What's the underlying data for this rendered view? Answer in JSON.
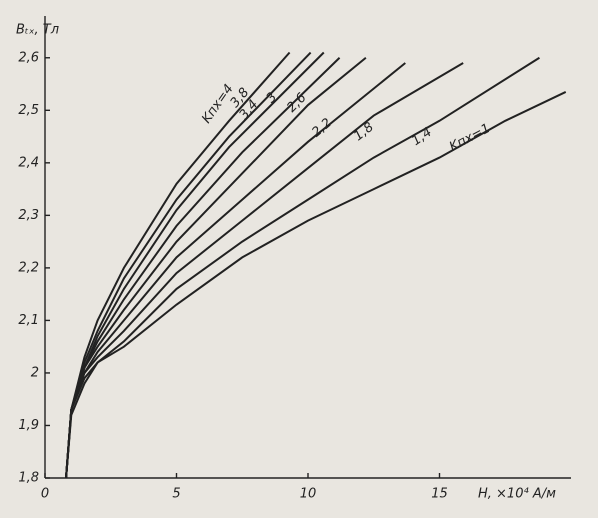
{
  "chart_data": {
    "type": "line",
    "y_label": "Bₜₓ, Тл",
    "x_label": "H, ×10⁴ А/м",
    "xlim": [
      0,
      20
    ],
    "ylim": [
      1.8,
      2.67
    ],
    "xticks": [
      0,
      5,
      10,
      15
    ],
    "yticks": [
      {
        "value": 1.8,
        "label": "1,8"
      },
      {
        "value": 1.9,
        "label": "1,9"
      },
      2,
      {
        "value": 2.1,
        "label": "2,1"
      },
      {
        "value": 2.2,
        "label": "2,2"
      },
      {
        "value": 2.3,
        "label": "2,3"
      },
      {
        "value": 2.4,
        "label": "2,4"
      },
      {
        "value": 2.5,
        "label": "2,5"
      },
      {
        "value": 2.6,
        "label": "2,6"
      }
    ],
    "series": [
      {
        "name": "Kпх=1",
        "color": "#222222",
        "x": [
          0.8,
          1,
          1.5,
          2,
          3,
          5,
          7.5,
          10,
          12.5,
          15,
          17.5,
          19.8
        ],
        "values": [
          1.8,
          1.92,
          1.98,
          2.02,
          2.05,
          2.13,
          2.22,
          2.29,
          2.35,
          2.41,
          2.48,
          2.535
        ]
      },
      {
        "name": "1,4",
        "color": "#222222",
        "x": [
          0.8,
          1,
          1.5,
          2,
          3,
          5,
          7.5,
          10,
          12.5,
          15,
          18.8
        ],
        "values": [
          1.8,
          1.93,
          1.99,
          2.02,
          2.06,
          2.16,
          2.25,
          2.33,
          2.41,
          2.48,
          2.6
        ]
      },
      {
        "name": "1,8",
        "color": "#222222",
        "x": [
          0.8,
          1,
          1.5,
          2,
          3,
          5,
          7.5,
          10,
          12.5,
          15.9
        ],
        "values": [
          1.8,
          1.93,
          2.0,
          2.03,
          2.08,
          2.19,
          2.29,
          2.39,
          2.49,
          2.59
        ]
      },
      {
        "name": "2,2",
        "color": "#222222",
        "x": [
          0.8,
          1,
          1.5,
          2,
          3,
          5,
          7.5,
          10,
          13.7
        ],
        "values": [
          1.8,
          1.93,
          2.0,
          2.04,
          2.1,
          2.22,
          2.33,
          2.44,
          2.59
        ]
      },
      {
        "name": "2,6",
        "color": "#222222",
        "x": [
          0.8,
          1,
          1.5,
          2,
          3,
          5,
          7.5,
          10,
          12.2
        ],
        "values": [
          1.8,
          1.93,
          2.01,
          2.05,
          2.12,
          2.25,
          2.38,
          2.51,
          2.6
        ]
      },
      {
        "name": "3",
        "color": "#222222",
        "x": [
          0.8,
          1,
          1.5,
          2,
          3,
          5,
          7.5,
          11.2
        ],
        "values": [
          1.8,
          1.93,
          2.01,
          2.06,
          2.14,
          2.28,
          2.42,
          2.6
        ]
      },
      {
        "name": "3,4",
        "color": "#222222",
        "x": [
          0.8,
          1,
          1.5,
          2,
          3,
          5,
          7,
          10.6
        ],
        "values": [
          1.8,
          1.93,
          2.01,
          2.07,
          2.16,
          2.31,
          2.43,
          2.61
        ]
      },
      {
        "name": "3,8",
        "color": "#222222",
        "x": [
          0.8,
          1,
          1.5,
          2,
          3,
          5,
          7,
          10.1
        ],
        "values": [
          1.8,
          1.93,
          2.02,
          2.08,
          2.18,
          2.33,
          2.45,
          2.61
        ]
      },
      {
        "name": "Kпх=4",
        "color": "#222222",
        "x": [
          0.8,
          1,
          1.5,
          2,
          3,
          5,
          7,
          9.3
        ],
        "values": [
          1.8,
          1.93,
          2.03,
          2.1,
          2.2,
          2.36,
          2.48,
          2.61
        ]
      }
    ]
  }
}
